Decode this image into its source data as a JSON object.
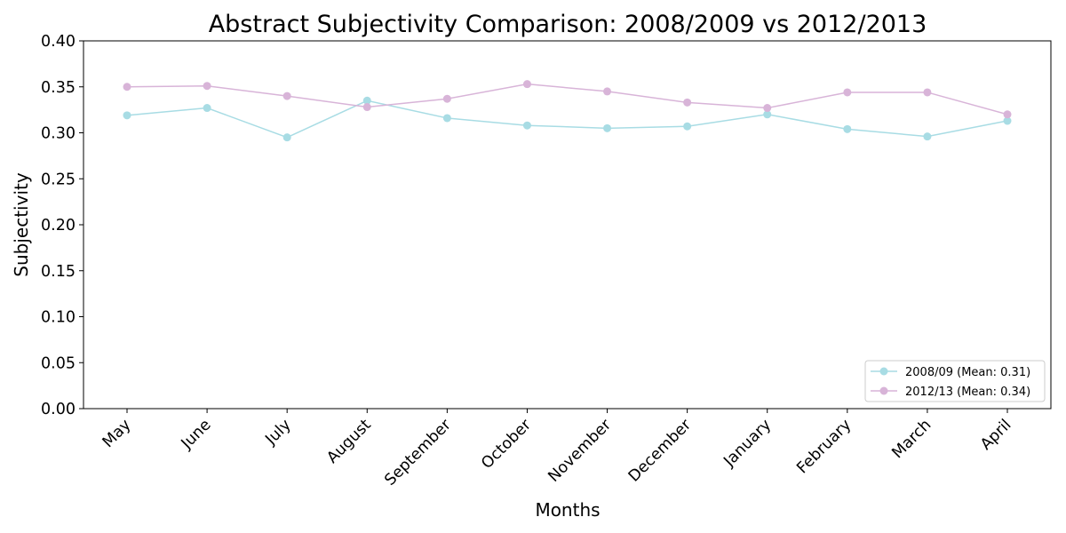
{
  "chart_data": {
    "type": "line",
    "title": "Abstract Subjectivity Comparison: 2008/2009 vs 2012/2013",
    "xlabel": "Months",
    "ylabel": "Subjectivity",
    "categories": [
      "May",
      "June",
      "July",
      "August",
      "September",
      "October",
      "November",
      "December",
      "January",
      "February",
      "March",
      "April"
    ],
    "ylim": [
      0,
      0.4
    ],
    "yticks": [
      "0.00",
      "0.05",
      "0.10",
      "0.15",
      "0.20",
      "0.25",
      "0.30",
      "0.35",
      "0.40"
    ],
    "grid": false,
    "legend_position": "bottom-right",
    "series": [
      {
        "name": "2008/09 (Mean: 0.31)",
        "color": "#a8dce4",
        "values": [
          0.319,
          0.327,
          0.295,
          0.335,
          0.316,
          0.308,
          0.305,
          0.307,
          0.32,
          0.304,
          0.296,
          0.313
        ]
      },
      {
        "name": "2012/13 (Mean: 0.34)",
        "color": "#d8b4d8",
        "values": [
          0.35,
          0.351,
          0.34,
          0.328,
          0.337,
          0.353,
          0.345,
          0.333,
          0.327,
          0.344,
          0.344,
          0.32
        ]
      }
    ]
  }
}
